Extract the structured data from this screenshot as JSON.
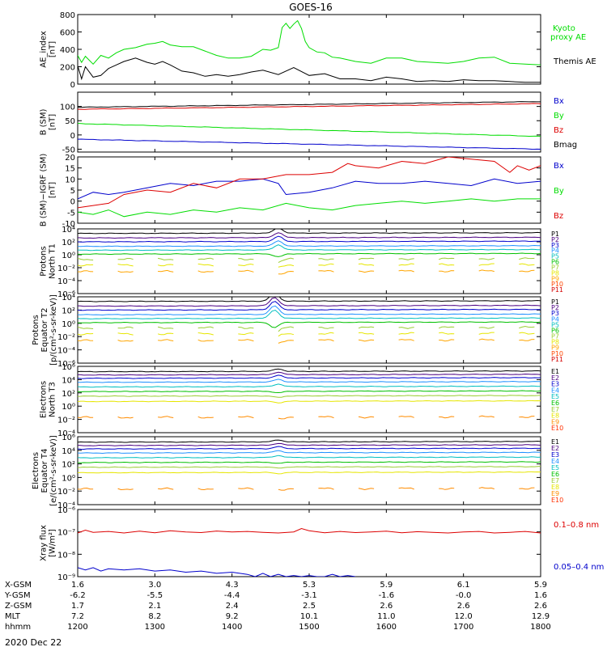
{
  "title": "GOES-16",
  "date_label": "2020 Dec 22",
  "colors": {
    "black": "#000000",
    "green": "#00dd00",
    "red": "#dd0000",
    "blue": "#0000cc",
    "proton": [
      "#000000",
      "#4b0082",
      "#0000cd",
      "#1e90ff",
      "#00bfbf",
      "#00c000",
      "#9acd32",
      "#e6e600",
      "#ffa500",
      "#ff4500",
      "#d40000"
    ],
    "electron": [
      "#000000",
      "#4b0082",
      "#0000cd",
      "#1e90ff",
      "#00bfbf",
      "#00c000",
      "#9acd32",
      "#e6e600",
      "#ff8c00",
      "#ff3000",
      "#d40000"
    ]
  },
  "chart_data": [
    {
      "type": "line",
      "id": "ae",
      "ylabel": [
        "AE_index",
        "[nT]"
      ],
      "ylim": [
        0,
        800
      ],
      "ticks": [
        "0",
        "200",
        "400",
        "600",
        "800"
      ],
      "log": false,
      "series": [
        {
          "name": "Kyoto proxy AE",
          "legend_lines": [
            "Kyoto",
            "proxy AE"
          ],
          "color": "green",
          "x": [
            0,
            5,
            10,
            20,
            30,
            40,
            50,
            60,
            75,
            90,
            100,
            110,
            120,
            135,
            150,
            165,
            180,
            195,
            210,
            225,
            240,
            250,
            260,
            265,
            270,
            275,
            280,
            285,
            290,
            295,
            300,
            310,
            320,
            330,
            340,
            360,
            380,
            400,
            420,
            440,
            460,
            480,
            500,
            520,
            540,
            560,
            580,
            600
          ],
          "y": [
            330,
            250,
            320,
            230,
            330,
            300,
            360,
            400,
            420,
            460,
            470,
            490,
            450,
            430,
            430,
            380,
            330,
            300,
            300,
            320,
            400,
            390,
            420,
            650,
            700,
            640,
            690,
            730,
            640,
            490,
            420,
            370,
            360,
            310,
            300,
            260,
            240,
            300,
            300,
            260,
            250,
            240,
            260,
            300,
            310,
            240,
            230,
            220
          ]
        },
        {
          "name": "Themis AE",
          "legend_lines": [
            "Themis AE"
          ],
          "color": "black",
          "x": [
            0,
            5,
            10,
            20,
            30,
            40,
            50,
            60,
            75,
            90,
            100,
            110,
            120,
            135,
            150,
            165,
            180,
            195,
            210,
            225,
            240,
            260,
            280,
            300,
            320,
            340,
            360,
            380,
            400,
            420,
            440,
            460,
            480,
            500,
            520,
            540,
            560,
            580,
            600
          ],
          "y": [
            210,
            60,
            200,
            80,
            100,
            180,
            220,
            260,
            300,
            250,
            230,
            260,
            220,
            150,
            130,
            90,
            110,
            90,
            110,
            140,
            160,
            110,
            190,
            100,
            120,
            60,
            60,
            40,
            80,
            60,
            30,
            40,
            30,
            50,
            40,
            40,
            30,
            20,
            20
          ]
        }
      ]
    },
    {
      "type": "line",
      "id": "bsm",
      "ylabel": [
        "B (SM)",
        "[nT]"
      ],
      "ylim": [
        -60,
        150
      ],
      "ticks": [
        "-50",
        "0",
        "50",
        "100"
      ],
      "log": false,
      "series": [
        {
          "name": "Bx",
          "color": "blue",
          "x": [
            0,
            600
          ],
          "y": [
            -15,
            -50
          ]
        },
        {
          "name": "By",
          "color": "green",
          "x": [
            0,
            600
          ],
          "y": [
            40,
            -5
          ]
        },
        {
          "name": "Bz",
          "color": "red",
          "x": [
            0,
            600
          ],
          "y": [
            90,
            110
          ]
        },
        {
          "name": "Bmag",
          "color": "black",
          "x": [
            0,
            600
          ],
          "y": [
            97,
            117
          ]
        }
      ]
    },
    {
      "type": "line",
      "id": "bdiff",
      "ylabel": [
        "B (SM)−IGRF (SM)",
        "[nT]"
      ],
      "ylim": [
        -10,
        20
      ],
      "ticks": [
        "-10",
        "-5",
        "0",
        "5",
        "10",
        "15",
        "20"
      ],
      "log": false,
      "series": [
        {
          "name": "Bx",
          "color": "blue",
          "x": [
            0,
            20,
            40,
            60,
            90,
            120,
            150,
            180,
            210,
            240,
            260,
            270,
            300,
            330,
            360,
            390,
            420,
            450,
            480,
            510,
            540,
            570,
            600
          ],
          "y": [
            1,
            4,
            3,
            4,
            6,
            8,
            7,
            9,
            9,
            10,
            8,
            3,
            4,
            6,
            9,
            8,
            8,
            9,
            8,
            7,
            10,
            8,
            9
          ]
        },
        {
          "name": "By",
          "color": "green",
          "x": [
            0,
            20,
            40,
            60,
            90,
            120,
            150,
            180,
            210,
            240,
            270,
            300,
            330,
            360,
            390,
            420,
            450,
            480,
            510,
            540,
            570,
            600
          ],
          "y": [
            -5,
            -6,
            -4,
            -7,
            -5,
            -6,
            -4,
            -5,
            -3,
            -4,
            -1,
            -3,
            -4,
            -2,
            -1,
            0,
            -1,
            0,
            1,
            0,
            1,
            1
          ]
        },
        {
          "name": "Bz",
          "color": "red",
          "x": [
            0,
            20,
            40,
            60,
            90,
            120,
            150,
            180,
            210,
            240,
            270,
            300,
            330,
            350,
            360,
            390,
            420,
            450,
            480,
            510,
            540,
            560,
            570,
            585,
            600
          ],
          "y": [
            -3,
            -2,
            -1,
            3,
            5,
            4,
            8,
            6,
            10,
            10,
            12,
            12,
            13,
            17,
            16,
            15,
            18,
            17,
            20,
            19,
            18,
            13,
            16,
            14,
            16
          ]
        }
      ]
    },
    {
      "type": "line",
      "id": "protons_t1",
      "ylabel": [
        "Protons",
        "North T1"
      ],
      "ylim": [
        -6,
        4
      ],
      "ticks": [
        "10⁻⁶",
        "10⁻⁴",
        "10⁻²",
        "10⁰",
        "10²",
        "10⁴"
      ],
      "log": true,
      "channels": [
        "P1",
        "P2",
        "P3",
        "P4",
        "P5",
        "P6",
        "P7",
        "P8",
        "P9",
        "P10",
        "P11"
      ],
      "levels": [
        3.3,
        2.6,
        2.0,
        1.3,
        0.7,
        0.1,
        -0.7,
        -1.6,
        -2.6,
        null,
        null
      ],
      "trend": [
        0.1,
        0.1,
        0.1,
        0.1,
        0.1,
        0.1,
        0.1,
        0.1,
        0.1,
        0,
        0
      ],
      "bump_x": 260,
      "bump_amp": 0.8,
      "gaps": [
        6,
        7,
        8
      ]
    },
    {
      "type": "line",
      "id": "protons_t2",
      "ylabel": [
        "Protons",
        "Equator T2",
        "[p/(cm²-s-sr-keV)]"
      ],
      "ylim": [
        -6,
        4
      ],
      "ticks": [
        "10⁻⁶",
        "10⁻⁴",
        "10⁻²",
        "10⁰",
        "10²",
        "10⁴"
      ],
      "log": true,
      "channels": [
        "P1",
        "P2",
        "P3",
        "P4",
        "P5",
        "P6",
        "P7",
        "P8",
        "P9",
        "P10",
        "P11"
      ],
      "levels": [
        3.3,
        2.6,
        2.0,
        1.3,
        0.7,
        0.1,
        -0.7,
        -1.6,
        -2.6,
        null,
        null
      ],
      "trend": [
        0.1,
        0.1,
        0.1,
        0.1,
        0.1,
        0.1,
        0.1,
        0.1,
        0.1,
        0,
        0
      ],
      "bump_x": 255,
      "bump_amp": 1.3,
      "gaps": [
        6,
        7,
        8
      ]
    },
    {
      "type": "line",
      "id": "electrons_t3",
      "ylabel": [
        "Electrons",
        "North T3"
      ],
      "ylim": [
        -4,
        6
      ],
      "ticks": [
        "10⁻⁴",
        "10⁻²",
        "10⁰",
        "10²",
        "10⁴",
        "10⁶"
      ],
      "log": true,
      "channels": [
        "E1",
        "E2",
        "E3",
        "E4",
        "E5",
        "E6",
        "E7",
        "E8",
        "E9",
        "E10"
      ],
      "levels": [
        5.2,
        4.7,
        4.2,
        3.6,
        2.9,
        2.2,
        1.5,
        0.7,
        -1.7,
        null
      ],
      "trend": [
        0.1,
        0.1,
        0.1,
        0.1,
        0.1,
        0.1,
        0.1,
        0.1,
        0.1,
        0
      ],
      "bump_x": 260,
      "bump_amp": 0.4,
      "gaps": [
        8
      ]
    },
    {
      "type": "line",
      "id": "electrons_t4",
      "ylabel": [
        "Electrons",
        "Equator T4",
        "[e/(cm²-s-sr-keV)]"
      ],
      "ylim": [
        -4,
        6
      ],
      "ticks": [
        "10⁻⁴",
        "10⁻²",
        "10⁰",
        "10²",
        "10⁴",
        "10⁶"
      ],
      "log": true,
      "channels": [
        "E1",
        "E2",
        "E3",
        "E4",
        "E5",
        "E6",
        "E7",
        "E8",
        "E9",
        "E10"
      ],
      "levels": [
        5.2,
        4.7,
        4.2,
        3.6,
        2.9,
        2.2,
        1.5,
        0.7,
        -1.7,
        null
      ],
      "trend": [
        0.1,
        0.1,
        0.1,
        0.1,
        0.1,
        0.1,
        0.1,
        0.1,
        0.1,
        0
      ],
      "bump_x": 260,
      "bump_amp": 0.3,
      "gaps": [
        8
      ]
    },
    {
      "type": "line",
      "id": "xray",
      "ylabel": [
        "Xray flux",
        "[W/m²]"
      ],
      "ylim": [
        -9,
        -6
      ],
      "ticks": [
        "10⁻⁹",
        "10⁻⁸",
        "10⁻⁷",
        "10⁻⁶"
      ],
      "log": true,
      "series": [
        {
          "name": "0.1–0.8 nm",
          "color": "red",
          "x": [
            0,
            10,
            20,
            40,
            60,
            80,
            100,
            120,
            140,
            160,
            180,
            200,
            220,
            240,
            260,
            280,
            290,
            300,
            320,
            340,
            360,
            380,
            400,
            420,
            440,
            460,
            480,
            500,
            520,
            540,
            560,
            580,
            600
          ],
          "y": [
            -7.05,
            -6.92,
            -7.02,
            -6.98,
            -7.05,
            -6.97,
            -7.04,
            -6.95,
            -7.0,
            -7.03,
            -6.96,
            -7.0,
            -6.98,
            -7.02,
            -7.05,
            -7.0,
            -6.85,
            -6.95,
            -7.04,
            -6.98,
            -7.03,
            -7.0,
            -6.97,
            -7.04,
            -6.99,
            -7.02,
            -7.05,
            -7.0,
            -6.98,
            -7.05,
            -7.02,
            -6.98,
            -7.05
          ]
        },
        {
          "name": "0.05–0.4 nm",
          "color": "blue",
          "x": [
            0,
            10,
            20,
            30,
            40,
            60,
            80,
            100,
            120,
            140,
            160,
            180,
            200,
            220,
            230,
            240,
            250,
            260,
            270,
            280,
            290,
            300,
            310,
            320,
            330,
            340,
            350,
            360
          ],
          "y": [
            -8.6,
            -8.7,
            -8.6,
            -8.75,
            -8.65,
            -8.7,
            -8.65,
            -8.75,
            -8.7,
            -8.8,
            -8.75,
            -8.85,
            -8.8,
            -8.9,
            -9.0,
            -8.85,
            -9.0,
            -8.9,
            -9.0,
            -8.95,
            -9.0,
            -8.95,
            -9.0,
            -9.0,
            -8.9,
            -9.0,
            -8.95,
            -9.0
          ]
        }
      ]
    }
  ],
  "time_axis": {
    "row_labels": [
      "X-GSM",
      "Y-GSM",
      "Z-GSM",
      "MLT",
      "hhmm"
    ],
    "columns": [
      {
        "x": 0,
        "values": [
          "1.6",
          "-6.2",
          "1.7",
          "7.2",
          "1200"
        ]
      },
      {
        "x": 100,
        "values": [
          "3.0",
          "-5.5",
          "2.1",
          "8.2",
          "1300"
        ]
      },
      {
        "x": 200,
        "values": [
          "4.3",
          "-4.4",
          "2.4",
          "9.2",
          "1400"
        ]
      },
      {
        "x": 300,
        "values": [
          "5.3",
          "-3.1",
          "2.5",
          "10.1",
          "1500"
        ]
      },
      {
        "x": 400,
        "values": [
          "5.9",
          "-1.6",
          "2.6",
          "11.0",
          "1600"
        ]
      },
      {
        "x": 500,
        "values": [
          "6.1",
          "-0.0",
          "2.6",
          "12.0",
          "1700"
        ]
      },
      {
        "x": 600,
        "values": [
          "5.9",
          "1.6",
          "2.6",
          "12.9",
          "1800"
        ]
      }
    ]
  }
}
